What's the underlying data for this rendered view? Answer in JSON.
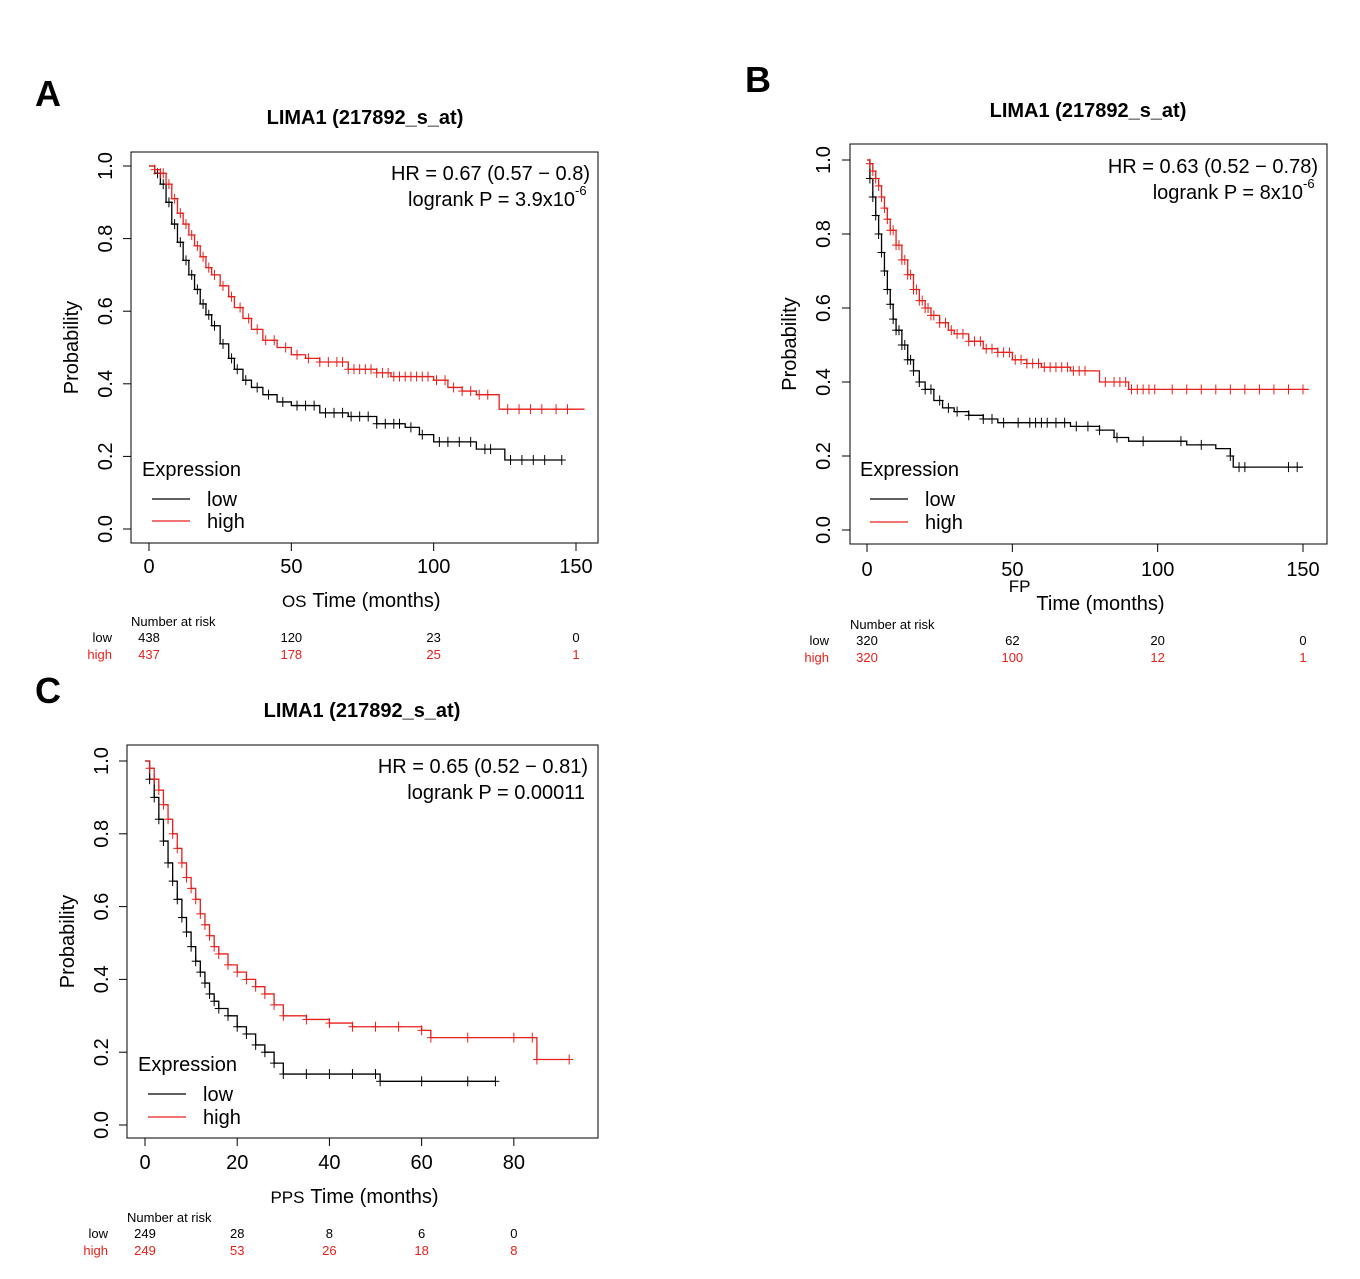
{
  "colors": {
    "low": "#000000",
    "high": "#e8201c",
    "frame": "#000000"
  },
  "chart_data": [
    {
      "panel_label": "A",
      "type": "line",
      "title": "LIMA1 (217892_s_at)",
      "xlabel": "Time (months)",
      "xlabel_prefix": "OS",
      "ylabel": "Probability",
      "xlim": [
        0,
        150
      ],
      "ylim": [
        0,
        1
      ],
      "xticks": [
        0,
        50,
        100,
        150
      ],
      "yticks": [
        "0.0",
        "0.2",
        "0.4",
        "0.6",
        "0.8",
        "1.0"
      ],
      "hr_text": "HR = 0.67 (0.57 − 0.8)",
      "logrank_text": "logrank P = 3.9x10",
      "logrank_exp": "-6",
      "legend": {
        "title": "Expression",
        "low_label": "low",
        "high_label": "high"
      },
      "risk_header": "Number at risk",
      "risk_times": [
        0,
        50,
        100,
        150
      ],
      "risk": {
        "low": [
          "438",
          "120",
          "23",
          "0"
        ],
        "high": [
          "437",
          "178",
          "25",
          "1"
        ]
      },
      "series": [
        {
          "name": "low",
          "x": [
            0,
            2,
            4,
            6,
            8,
            10,
            12,
            14,
            16,
            18,
            20,
            22,
            25,
            28,
            30,
            33,
            36,
            40,
            45,
            50,
            60,
            70,
            80,
            90,
            95,
            100,
            105,
            110,
            115,
            125,
            130,
            140,
            145
          ],
          "y": [
            1.0,
            0.98,
            0.95,
            0.9,
            0.84,
            0.79,
            0.74,
            0.7,
            0.66,
            0.62,
            0.59,
            0.56,
            0.51,
            0.47,
            0.44,
            0.41,
            0.39,
            0.37,
            0.35,
            0.34,
            0.32,
            0.31,
            0.29,
            0.28,
            0.26,
            0.24,
            0.24,
            0.24,
            0.22,
            0.19,
            0.19,
            0.19,
            0.19
          ],
          "censor": [
            3,
            5,
            7,
            9,
            11,
            13,
            15,
            17,
            19,
            21,
            23,
            26,
            29,
            31,
            34,
            38,
            42,
            47,
            52,
            55,
            58,
            62,
            65,
            68,
            71,
            74,
            77,
            80,
            83,
            86,
            88,
            92,
            96,
            102,
            105,
            109,
            113,
            118,
            120,
            127,
            131,
            135,
            139,
            145
          ]
        },
        {
          "name": "high",
          "x": [
            0,
            2,
            4,
            6,
            8,
            10,
            12,
            14,
            16,
            18,
            20,
            22,
            25,
            28,
            30,
            33,
            36,
            40,
            45,
            50,
            55,
            60,
            70,
            80,
            85,
            90,
            100,
            105,
            110,
            115,
            122,
            123,
            135,
            153
          ],
          "y": [
            1.0,
            0.99,
            0.98,
            0.95,
            0.91,
            0.87,
            0.84,
            0.81,
            0.78,
            0.75,
            0.72,
            0.7,
            0.67,
            0.64,
            0.61,
            0.58,
            0.55,
            0.52,
            0.5,
            0.48,
            0.47,
            0.46,
            0.44,
            0.43,
            0.42,
            0.42,
            0.41,
            0.39,
            0.38,
            0.37,
            0.37,
            0.33,
            0.33,
            0.33
          ],
          "censor": [
            2,
            4,
            5,
            7,
            9,
            11,
            13,
            15,
            17,
            19,
            21,
            23,
            26,
            29,
            32,
            35,
            38,
            41,
            44,
            48,
            52,
            56,
            60,
            63,
            66,
            68,
            70,
            72,
            74,
            76,
            78,
            80,
            82,
            84,
            86,
            88,
            90,
            92,
            94,
            96,
            98,
            101,
            104,
            107,
            110,
            113,
            116,
            119,
            126,
            130,
            134,
            138,
            143,
            147,
            153
          ]
        }
      ]
    },
    {
      "panel_label": "B",
      "type": "line",
      "title": "LIMA1 (217892_s_at)",
      "xlabel": "Time (months)",
      "xlabel_prefix": "FP",
      "ylabel": "Probability",
      "xlim": [
        0,
        150
      ],
      "ylim": [
        0,
        1
      ],
      "xticks": [
        0,
        50,
        100,
        150
      ],
      "yticks": [
        "0.0",
        "0.2",
        "0.4",
        "0.6",
        "0.8",
        "1.0"
      ],
      "hr_text": "HR = 0.63 (0.52 − 0.78)",
      "logrank_text": "logrank P = 8x10",
      "logrank_exp": "-6",
      "legend": {
        "title": "Expression",
        "low_label": "low",
        "high_label": "high"
      },
      "risk_header": "Number at risk",
      "risk_times": [
        0,
        50,
        100,
        150
      ],
      "risk": {
        "low": [
          "320",
          "62",
          "20",
          "0"
        ],
        "high": [
          "320",
          "100",
          "12",
          "1"
        ]
      },
      "series": [
        {
          "name": "low",
          "x": [
            0,
            1,
            2,
            3,
            4,
            5,
            6,
            7,
            8,
            9,
            10,
            12,
            14,
            16,
            18,
            20,
            23,
            26,
            30,
            35,
            40,
            45,
            50,
            60,
            70,
            80,
            85,
            90,
            100,
            110,
            120,
            125,
            126,
            150
          ],
          "y": [
            1.0,
            0.95,
            0.9,
            0.85,
            0.8,
            0.75,
            0.7,
            0.65,
            0.61,
            0.57,
            0.54,
            0.5,
            0.46,
            0.43,
            0.4,
            0.38,
            0.35,
            0.33,
            0.32,
            0.31,
            0.3,
            0.29,
            0.29,
            0.29,
            0.28,
            0.27,
            0.25,
            0.24,
            0.24,
            0.23,
            0.22,
            0.2,
            0.17,
            0.17
          ],
          "censor": [
            1,
            2,
            3,
            4,
            5,
            6,
            7,
            8,
            9,
            10,
            11,
            12,
            13,
            14,
            15,
            16,
            18,
            20,
            22,
            25,
            28,
            31,
            35,
            40,
            43,
            47,
            52,
            56,
            58,
            60,
            62,
            65,
            68,
            72,
            76,
            80,
            86,
            95,
            108,
            115,
            125,
            128,
            130,
            145,
            148
          ]
        },
        {
          "name": "high",
          "x": [
            0,
            1,
            2,
            3,
            4,
            5,
            6,
            7,
            8,
            10,
            12,
            14,
            16,
            18,
            20,
            22,
            25,
            28,
            30,
            35,
            40,
            45,
            50,
            55,
            60,
            65,
            70,
            75,
            80,
            90,
            100,
            120,
            140,
            152
          ],
          "y": [
            1.0,
            0.99,
            0.97,
            0.95,
            0.93,
            0.9,
            0.87,
            0.84,
            0.81,
            0.77,
            0.73,
            0.69,
            0.65,
            0.62,
            0.6,
            0.58,
            0.56,
            0.54,
            0.53,
            0.51,
            0.49,
            0.48,
            0.46,
            0.45,
            0.44,
            0.44,
            0.43,
            0.43,
            0.4,
            0.38,
            0.38,
            0.38,
            0.38,
            0.38
          ],
          "censor": [
            1,
            2,
            3,
            4,
            5,
            6,
            7,
            8,
            9,
            10,
            11,
            12,
            13,
            14,
            15,
            16,
            17,
            18,
            19,
            20,
            21,
            22,
            23,
            25,
            27,
            29,
            31,
            33,
            35,
            37,
            39,
            41,
            43,
            45,
            47,
            49,
            51,
            53,
            55,
            57,
            59,
            61,
            63,
            65,
            67,
            69,
            71,
            73,
            75,
            82,
            85,
            87,
            89,
            91,
            93,
            95,
            97,
            99,
            105,
            110,
            115,
            120,
            125,
            130,
            135,
            140,
            145,
            150,
            152
          ]
        }
      ]
    },
    {
      "panel_label": "C",
      "type": "line",
      "title": "LIMA1 (217892_s_at)",
      "xlabel": "Time (months)",
      "xlabel_prefix": "PPS",
      "ylabel": "Probability",
      "xlim": [
        0,
        95
      ],
      "ylim": [
        0,
        1
      ],
      "xticks": [
        0,
        20,
        40,
        60,
        80
      ],
      "yticks": [
        "0.0",
        "0.2",
        "0.4",
        "0.6",
        "0.8",
        "1.0"
      ],
      "hr_text": "HR = 0.65 (0.52 − 0.81)",
      "logrank_text": "logrank P = 0.00011",
      "logrank_exp": "",
      "legend": {
        "title": "Expression",
        "low_label": "low",
        "high_label": "high"
      },
      "risk_header": "Number at risk",
      "risk_times": [
        0,
        20,
        40,
        60,
        80
      ],
      "risk": {
        "low": [
          "249",
          "28",
          "8",
          "6",
          "0"
        ],
        "high": [
          "249",
          "53",
          "26",
          "18",
          "8"
        ]
      },
      "series": [
        {
          "name": "low",
          "x": [
            0,
            1,
            2,
            3,
            4,
            5,
            6,
            7,
            8,
            9,
            10,
            11,
            12,
            13,
            14,
            15,
            16,
            18,
            20,
            22,
            24,
            26,
            28,
            30,
            35,
            40,
            45,
            50,
            51,
            60,
            70,
            76
          ],
          "y": [
            1.0,
            0.95,
            0.9,
            0.84,
            0.78,
            0.72,
            0.67,
            0.62,
            0.57,
            0.53,
            0.49,
            0.45,
            0.42,
            0.39,
            0.36,
            0.34,
            0.32,
            0.3,
            0.27,
            0.25,
            0.22,
            0.2,
            0.17,
            0.14,
            0.14,
            0.14,
            0.14,
            0.14,
            0.12,
            0.12,
            0.12,
            0.12
          ]
        },
        {
          "name": "high",
          "x": [
            0,
            1,
            2,
            3,
            4,
            5,
            6,
            7,
            8,
            9,
            10,
            11,
            12,
            13,
            14,
            15,
            16,
            18,
            20,
            22,
            24,
            26,
            28,
            30,
            35,
            40,
            45,
            50,
            55,
            60,
            62,
            70,
            80,
            84,
            85,
            92
          ],
          "y": [
            1.0,
            0.98,
            0.95,
            0.92,
            0.88,
            0.84,
            0.8,
            0.76,
            0.72,
            0.68,
            0.65,
            0.62,
            0.58,
            0.55,
            0.52,
            0.49,
            0.47,
            0.44,
            0.42,
            0.4,
            0.38,
            0.36,
            0.33,
            0.3,
            0.29,
            0.28,
            0.27,
            0.27,
            0.27,
            0.26,
            0.24,
            0.24,
            0.24,
            0.24,
            0.18,
            0.18
          ]
        }
      ]
    }
  ]
}
